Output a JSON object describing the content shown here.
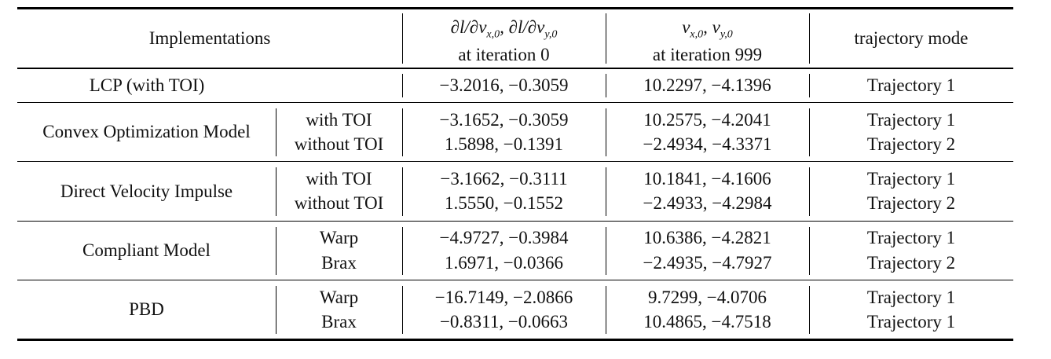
{
  "header": {
    "implementations": "Implementations",
    "grad_line1": "∂l/∂v",
    "grad_label_full": "∂l/∂vx,0, ∂l/∂vy,0",
    "grad_line2": "at iteration 0",
    "vel_line1": "vx,0, vy,0",
    "vel_line2": "at iteration 999",
    "mode": "trajectory mode"
  },
  "rows": {
    "lcp": {
      "name": "LCP (with TOI)",
      "grad": "−3.2016, −0.3059",
      "vel": "10.2297, −4.1396",
      "mode": "Trajectory 1"
    },
    "convex": {
      "name": "Convex Optimization Model",
      "sub1": "with TOI",
      "grad1": "−3.1652, −0.3059",
      "vel1": "10.2575, −4.2041",
      "mode1": "Trajectory 1",
      "sub2": "without TOI",
      "grad2": "1.5898, −0.1391",
      "vel2": "−2.4934, −4.3371",
      "mode2": "Trajectory 2"
    },
    "dvi": {
      "name": "Direct Velocity Impulse",
      "sub1": "with TOI",
      "grad1": "−3.1662, −0.3111",
      "vel1": "10.1841, −4.1606",
      "mode1": "Trajectory 1",
      "sub2": "without TOI",
      "grad2": "1.5550, −0.1552",
      "vel2": "−2.4933, −4.2984",
      "mode2": "Trajectory 2"
    },
    "compliant": {
      "name": "Compliant Model",
      "sub1": "Warp",
      "grad1": "−4.9727, −0.3984",
      "vel1": "10.6386, −4.2821",
      "mode1": "Trajectory 1",
      "sub2": "Brax",
      "grad2": "1.6971, −0.0366",
      "vel2": "−2.4935, −4.7927",
      "mode2": "Trajectory 2"
    },
    "pbd": {
      "name": "PBD",
      "sub1": "Warp",
      "grad1": "−16.7149, −2.0866",
      "vel1": "9.7299, −4.0706",
      "mode1": "Trajectory 1",
      "sub2": "Brax",
      "grad2": "−0.8311, −0.0663",
      "vel2": "10.4865, −4.7518",
      "mode2": "Trajectory 1"
    }
  }
}
